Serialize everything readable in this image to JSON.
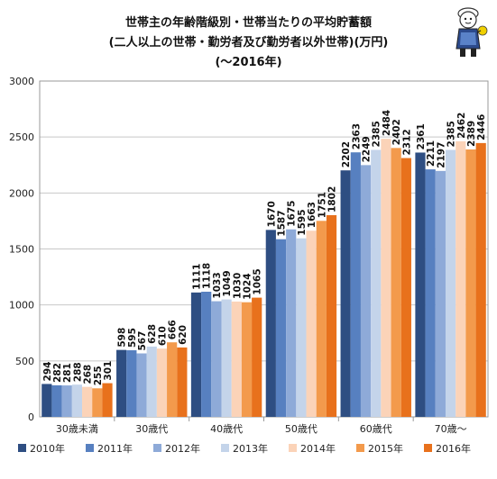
{
  "title_lines": [
    "世帯主の年齢階級別・世帯当たりの平均貯蓄額",
    "(二人以上の世帯・勤労者及び勤労者以外世帯)(万円)",
    "(～2016年)"
  ],
  "colors": [
    "#2e4e82",
    "#5780c0",
    "#8eaad8",
    "#c4d4ea",
    "#fbd3b8",
    "#f39a4c",
    "#e8711c"
  ],
  "chart_data": {
    "type": "bar",
    "categories": [
      "30歳未満",
      "30歳代",
      "40歳代",
      "50歳代",
      "60歳代",
      "70歳～"
    ],
    "series": [
      {
        "name": "2010年",
        "values": [
          294,
          598,
          1111,
          1670,
          2202,
          2361
        ]
      },
      {
        "name": "2011年",
        "values": [
          282,
          595,
          1118,
          1587,
          2363,
          2211
        ]
      },
      {
        "name": "2012年",
        "values": [
          281,
          567,
          1033,
          1675,
          2249,
          2197
        ]
      },
      {
        "name": "2013年",
        "values": [
          288,
          628,
          1049,
          1595,
          2385,
          2385
        ]
      },
      {
        "name": "2014年",
        "values": [
          268,
          610,
          1030,
          1663,
          2484,
          2462
        ]
      },
      {
        "name": "2015年",
        "values": [
          255,
          666,
          1024,
          1751,
          2402,
          2389
        ]
      },
      {
        "name": "2016年",
        "values": [
          301,
          620,
          1065,
          1802,
          2312,
          2446
        ]
      }
    ],
    "ylim": [
      0,
      3000
    ],
    "yticks": [
      0,
      500,
      1000,
      1500,
      2000,
      2500,
      3000
    ],
    "grid": true,
    "legend_position": "bottom"
  }
}
